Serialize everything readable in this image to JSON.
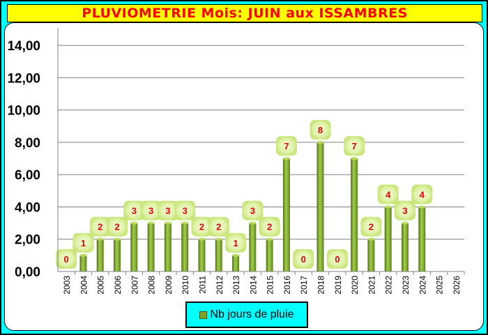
{
  "title": "PLUVIOMETRIE Mois: JUIN aux ISSAMBRES",
  "chart_data": {
    "type": "bar",
    "title": "PLUVIOMETRIE Mois: JUIN aux ISSAMBRES",
    "categories": [
      "2003",
      "2004",
      "2005",
      "2006",
      "2007",
      "2008",
      "2009",
      "2010",
      "2011",
      "2012",
      "2013",
      "2014",
      "2015",
      "2016",
      "2017",
      "2018",
      "2019",
      "2020",
      "2021",
      "2022",
      "2023",
      "2024",
      "2025",
      "2026"
    ],
    "series": [
      {
        "name": "Nb jours de pluie",
        "values": [
          0,
          1,
          2,
          2,
          3,
          3,
          3,
          3,
          2,
          2,
          1,
          3,
          2,
          7,
          0,
          8,
          0,
          7,
          2,
          4,
          3,
          4,
          null,
          null
        ],
        "labels": [
          "0",
          "1",
          "2",
          "2",
          "3",
          "3",
          "3",
          "3",
          "2",
          "2",
          "1",
          "3",
          "2",
          "7",
          "0",
          "8",
          "0",
          "7",
          "2",
          "4",
          "3",
          "4",
          "",
          ""
        ],
        "color": "#7aa32a"
      }
    ],
    "ylim": [
      0,
      15
    ],
    "yticks": [
      "0,00",
      "2,00",
      "4,00",
      "6,00",
      "8,00",
      "10,00",
      "12,00",
      "14,00"
    ],
    "ytick_values": [
      0,
      2,
      4,
      6,
      8,
      10,
      12,
      14
    ],
    "grid": true,
    "legend": "bottom"
  }
}
